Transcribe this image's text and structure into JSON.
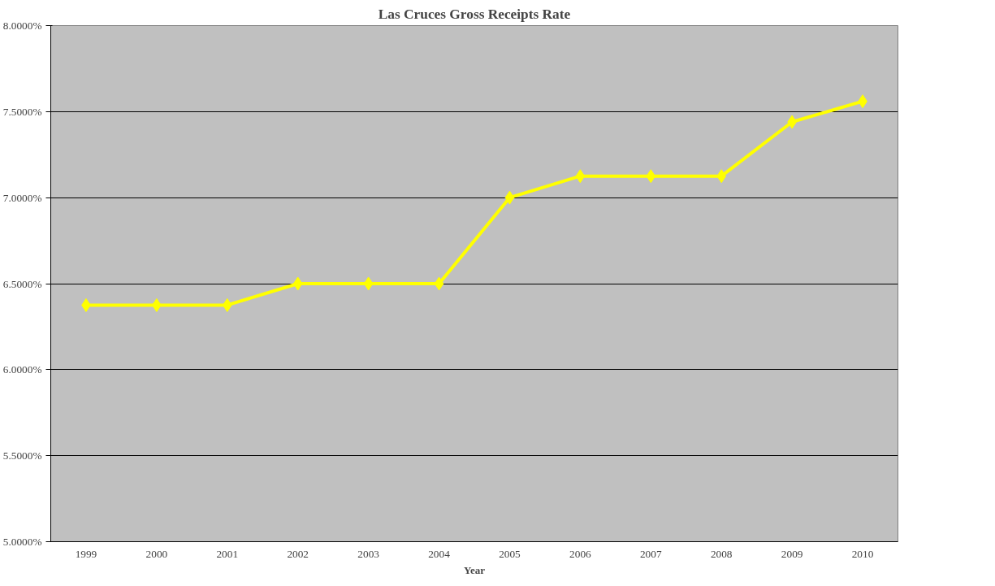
{
  "chart_data": {
    "type": "line",
    "title": "Las Cruces Gross Receipts Rate",
    "xlabel": "Year",
    "categories": [
      "1999",
      "2000",
      "2001",
      "2002",
      "2003",
      "2004",
      "2005",
      "2006",
      "2007",
      "2008",
      "2009",
      "2010"
    ],
    "series": [
      {
        "color": "#ffff00",
        "values": [
          6.375,
          6.375,
          6.375,
          6.5,
          6.5,
          6.5,
          7.0,
          7.125,
          7.125,
          7.125,
          7.44,
          7.56
        ]
      }
    ],
    "ylim": [
      5,
      8
    ],
    "yticks": [
      {
        "value": 5,
        "label": "5.0000%"
      },
      {
        "value": 5.5,
        "label": "5.5000%"
      },
      {
        "value": 6,
        "label": "6.0000%"
      },
      {
        "value": 6.5,
        "label": "6.5000%"
      },
      {
        "value": 7,
        "label": "7.0000%"
      },
      {
        "value": 7.5,
        "label": "7.5000%"
      },
      {
        "value": 8,
        "label": "8.0000%"
      }
    ],
    "grid": "y",
    "marker": "diamond",
    "line_style": "solid"
  }
}
